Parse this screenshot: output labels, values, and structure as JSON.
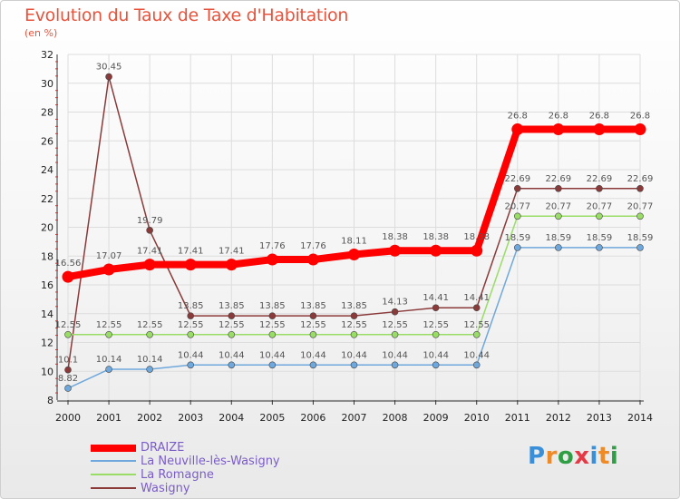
{
  "title": "Evolution du Taux de Taxe d'Habitation",
  "unit": "(en %)",
  "brand": "Proxiti",
  "chart_data": {
    "type": "line",
    "title": "Evolution du Taux de Taxe d'Habitation",
    "ylabel": "(en %)",
    "xlabel": "",
    "ylim": [
      8,
      32
    ],
    "yticks": [
      8,
      10,
      12,
      14,
      16,
      18,
      20,
      22,
      24,
      26,
      28,
      30,
      32
    ],
    "categories": [
      "2000",
      "2001",
      "2002",
      "2003",
      "2004",
      "2005",
      "2006",
      "2007",
      "2008",
      "2009",
      "2010",
      "2011",
      "2012",
      "2013",
      "2014"
    ],
    "series": [
      {
        "name": "DRAIZE",
        "color": "#ff0000",
        "values": [
          16.56,
          17.07,
          17.41,
          17.41,
          17.41,
          17.76,
          17.76,
          18.11,
          18.38,
          18.38,
          18.38,
          26.8,
          26.8,
          26.8,
          26.8
        ],
        "labels": [
          "16.56",
          "17.07",
          "17.41",
          "17.41",
          "17.41",
          "17.76",
          "17.76",
          "18.11",
          "18.38",
          "18.38",
          "18.38",
          "26.8",
          "26.8",
          "26.8",
          "26.8"
        ]
      },
      {
        "name": "La Neuville-lès-Wasigny",
        "color": "#6fa8dc",
        "values": [
          8.82,
          10.14,
          10.14,
          10.44,
          10.44,
          10.44,
          10.44,
          10.44,
          10.44,
          10.44,
          10.44,
          18.59,
          18.59,
          18.59,
          18.59
        ],
        "labels": [
          "8.82",
          "10.14",
          "10.14",
          "10.44",
          "10.44",
          "10.44",
          "10.44",
          "10.44",
          "10.44",
          "10.44",
          "10.44",
          "18.59",
          "18.59",
          "18.59",
          "18.59"
        ]
      },
      {
        "name": "La Romagne",
        "color": "#99dd66",
        "values": [
          12.55,
          12.55,
          12.55,
          12.55,
          12.55,
          12.55,
          12.55,
          12.55,
          12.55,
          12.55,
          12.55,
          20.77,
          20.77,
          20.77,
          20.77
        ],
        "labels": [
          "12.55",
          "12.55",
          "12.55",
          "12.55",
          "12.55",
          "12.55",
          "12.55",
          "12.55",
          "12.55",
          "12.55",
          "12.55",
          "20.77",
          "20.77",
          "20.77",
          "20.77"
        ]
      },
      {
        "name": "Wasigny",
        "color": "#8b3a3a",
        "values": [
          10.1,
          30.45,
          19.79,
          13.85,
          13.85,
          13.85,
          13.85,
          13.85,
          14.13,
          14.41,
          14.41,
          22.69,
          22.69,
          22.69,
          22.69
        ],
        "labels": [
          "10.1",
          "30.45",
          "19.79",
          "13.85",
          "13.85",
          "13.85",
          "13.85",
          "13.85",
          "14.13",
          "14.41",
          "14.41",
          "22.69",
          "22.69",
          "22.69",
          "22.69"
        ]
      }
    ]
  }
}
